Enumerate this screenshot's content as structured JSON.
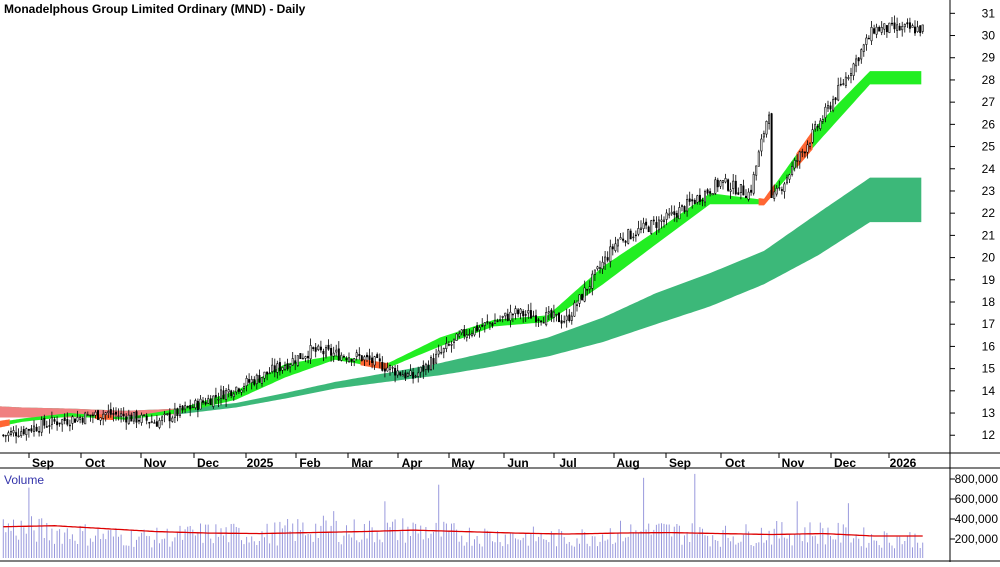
{
  "chart_data": [
    {
      "type": "line",
      "title": "Monadelphous Group Limited Ordinary (MND) - Daily",
      "x_tick_labels": [
        "Sep",
        "Oct",
        "Nov",
        "Dec",
        "2025",
        "Feb",
        "Mar",
        "Apr",
        "May",
        "Jun",
        "Jul",
        "Aug",
        "Sep",
        "Oct",
        "Nov",
        "Dec",
        "2026"
      ],
      "y_tick_labels": [
        "12",
        "13",
        "14",
        "15",
        "16",
        "17",
        "18",
        "19",
        "20",
        "21",
        "22",
        "23",
        "24",
        "25",
        "26",
        "27",
        "28",
        "29",
        "30",
        "31"
      ],
      "ylim": [
        11.2,
        31.6
      ],
      "grid": false,
      "series": [
        {
          "kind": "candlestick_close",
          "x": [
            "Aug 2024",
            "Sep 2024",
            "Oct 2024",
            "Nov 2024",
            "Dec 2024",
            "Jan 2025",
            "Feb 2025",
            "Mar 2025",
            "Apr 2025",
            "May 2025",
            "Jun 2025",
            "Jul 2025",
            "Aug 2025",
            "Sep 2025",
            "Oct 2025",
            "Nov 2025",
            "Dec 2025",
            "Jan 2026"
          ],
          "values": [
            12.0,
            12.6,
            13.0,
            12.6,
            13.6,
            14.6,
            15.8,
            15.5,
            14.6,
            16.6,
            17.5,
            17.2,
            20.8,
            21.8,
            23.4,
            22.5,
            26.3,
            30.3
          ]
        },
        {
          "kind": "short_term_ma_band",
          "color_up": "#22ee22",
          "color_down": "#ff6633",
          "x": [
            "Aug 2024",
            "Sep 2024",
            "Oct 2024",
            "Nov 2024",
            "Dec 2024",
            "Jan 2025",
            "Feb 2025",
            "Mar 2025",
            "Apr 2025",
            "May 2025",
            "Jun 2025",
            "Jul 2025",
            "Aug 2025",
            "Sep 2025",
            "Oct 2025",
            "Nov 2025",
            "Dec 2025",
            "Jan 2026"
          ],
          "lower": [
            12.4,
            12.6,
            12.85,
            12.7,
            13.0,
            13.6,
            14.6,
            15.4,
            15.0,
            16.0,
            16.9,
            17.1,
            18.8,
            20.6,
            22.4,
            22.4,
            25.2,
            27.8
          ],
          "upper": [
            12.6,
            12.75,
            13.0,
            12.8,
            13.2,
            14.0,
            15.2,
            15.6,
            15.2,
            16.4,
            17.2,
            17.4,
            19.6,
            21.2,
            22.9,
            22.6,
            26.0,
            28.4
          ]
        },
        {
          "kind": "long_term_ma_band",
          "color": "#3cb879",
          "x": [
            "Aug 2024",
            "Sep 2024",
            "Oct 2024",
            "Nov 2024",
            "Dec 2024",
            "Jan 2025",
            "Feb 2025",
            "Mar 2025",
            "Apr 2025",
            "May 2025",
            "Jun 2025",
            "Jul 2025",
            "Aug 2025",
            "Sep 2025",
            "Oct 2025",
            "Nov 2025",
            "Dec 2025",
            "Jan 2026"
          ],
          "lower": [
            12.8,
            12.8,
            12.8,
            12.85,
            12.95,
            13.25,
            13.65,
            14.1,
            14.4,
            14.7,
            15.1,
            15.55,
            16.2,
            17.0,
            17.8,
            18.8,
            20.1,
            21.6
          ],
          "upper": [
            13.3,
            13.25,
            13.2,
            13.1,
            13.2,
            13.45,
            13.9,
            14.4,
            14.8,
            15.25,
            15.8,
            16.4,
            17.3,
            18.4,
            19.3,
            20.3,
            22.0,
            23.6
          ]
        }
      ]
    },
    {
      "type": "bar",
      "title": "Volume",
      "y_tick_labels": [
        "200,000",
        "400,000",
        "600,000",
        "800,000"
      ],
      "ylim": [
        0,
        900000
      ],
      "colors": {
        "bars": "#9999dd",
        "average_line": "#dd0000"
      },
      "series": [
        {
          "kind": "volume_monthly_typical",
          "x": [
            "Aug 2024",
            "Sep 2024",
            "Oct 2024",
            "Nov 2024",
            "Dec 2024",
            "Jan 2025",
            "Feb 2025",
            "Mar 2025",
            "Apr 2025",
            "May 2025",
            "Jun 2025",
            "Jul 2025",
            "Aug 2025",
            "Sep 2025",
            "Oct 2025",
            "Nov 2025",
            "Dec 2025",
            "Jan 2026"
          ],
          "values": [
            350000,
            300000,
            250000,
            230000,
            280000,
            260000,
            330000,
            300000,
            320000,
            260000,
            250000,
            220000,
            290000,
            300000,
            250000,
            280000,
            290000,
            220000
          ]
        },
        {
          "kind": "volume_spikes",
          "x": [
            "Aug 2024",
            "Feb 2025",
            "Mar 2025",
            "Apr 2025",
            "Aug 2025",
            "Sep 2025",
            "Nov 2025",
            "Dec 2025"
          ],
          "values": [
            720000,
            480000,
            580000,
            750000,
            820000,
            860000,
            580000,
            560000
          ]
        },
        {
          "kind": "volume_average",
          "x": [
            "Aug 2024",
            "Sep 2024",
            "Oct 2024",
            "Nov 2024",
            "Dec 2024",
            "Jan 2025",
            "Feb 2025",
            "Mar 2025",
            "Apr 2025",
            "May 2025",
            "Jun 2025",
            "Jul 2025",
            "Aug 2025",
            "Sep 2025",
            "Oct 2025",
            "Nov 2025",
            "Dec 2025",
            "Jan 2026"
          ],
          "values": [
            320000,
            330000,
            300000,
            270000,
            255000,
            250000,
            260000,
            270000,
            285000,
            270000,
            255000,
            245000,
            255000,
            260000,
            250000,
            240000,
            250000,
            225000
          ]
        }
      ]
    }
  ]
}
